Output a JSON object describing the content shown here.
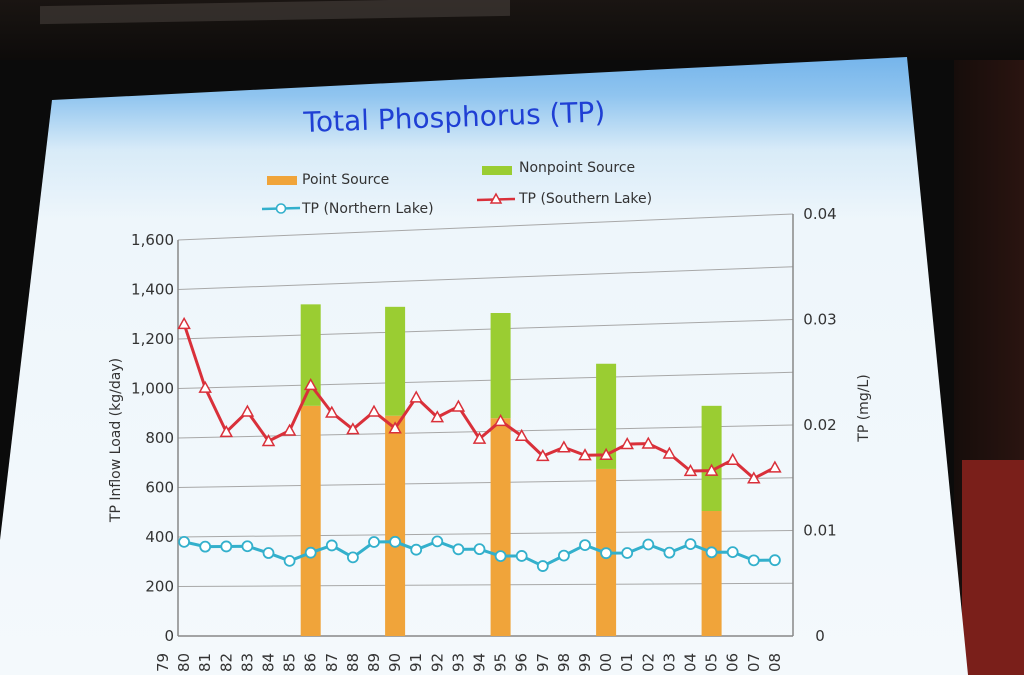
{
  "chart_data": {
    "type": "bar",
    "title": "Total Phosphorus (TP)",
    "xlabel": "",
    "ylabel": "TP Inflow Load (kg/day)",
    "y2label": "TP (mg/L)",
    "ylim": [
      0,
      1600
    ],
    "y2lim": [
      0,
      0.04
    ],
    "y_ticks": [
      "0",
      "200",
      "400",
      "600",
      "800",
      "1,000",
      "1,200",
      "1,400",
      "1,600"
    ],
    "y2_ticks": [
      "0",
      "0.01",
      "0.02",
      "0.03",
      "0.04"
    ],
    "x_ticks": [
      "79",
      "80",
      "81",
      "82",
      "83",
      "84",
      "85",
      "86",
      "87",
      "88",
      "89",
      "90",
      "91",
      "92",
      "93",
      "94",
      "95",
      "96",
      "97",
      "98",
      "99",
      "00",
      "01",
      "02",
      "03",
      "04",
      "05",
      "06",
      "07",
      "08"
    ],
    "bars": {
      "categories": [
        "86",
        "90",
        "95",
        "00",
        "05"
      ],
      "series": [
        {
          "name": "Point Source",
          "color": "#f0a43a",
          "values": [
            930,
            890,
            880,
            675,
            505
          ]
        },
        {
          "name": "Nonpoint Source",
          "color": "#9acd32",
          "values": [
            410,
            440,
            425,
            425,
            425
          ]
        }
      ]
    },
    "lines": [
      {
        "name": "TP (Northern Lake)",
        "color": "#33b0cc",
        "marker": "circle",
        "x": [
          "80",
          "81",
          "82",
          "83",
          "84",
          "85",
          "86",
          "87",
          "88",
          "89",
          "90",
          "91",
          "92",
          "93",
          "94",
          "95",
          "96",
          "97",
          "98",
          "99",
          "00",
          "01",
          "02",
          "03",
          "04",
          "05",
          "06",
          "07",
          "08"
        ],
        "values": [
          0.0095,
          0.009,
          0.009,
          0.009,
          0.0083,
          0.0075,
          0.0083,
          0.009,
          0.0078,
          0.0093,
          0.0093,
          0.0085,
          0.0093,
          0.0085,
          0.0085,
          0.0078,
          0.0078,
          0.0068,
          0.0078,
          0.0088,
          0.008,
          0.008,
          0.0088,
          0.008,
          0.0088,
          0.008,
          0.008,
          0.0072,
          0.0072
        ]
      },
      {
        "name": "TP (Southern Lake)",
        "color": "#d9303a",
        "marker": "triangle",
        "x": [
          "80",
          "81",
          "82",
          "83",
          "84",
          "85",
          "86",
          "87",
          "88",
          "89",
          "90",
          "91",
          "92",
          "93",
          "94",
          "95",
          "96",
          "97",
          "98",
          "99",
          "00",
          "01",
          "02",
          "03",
          "04",
          "05",
          "06",
          "07",
          "08"
        ],
        "values": [
          0.0315,
          0.025,
          0.0205,
          0.0225,
          0.0195,
          0.0205,
          0.025,
          0.0222,
          0.0205,
          0.0222,
          0.0205,
          0.0235,
          0.0215,
          0.0225,
          0.0193,
          0.021,
          0.0195,
          0.0175,
          0.0183,
          0.0175,
          0.0175,
          0.0185,
          0.0185,
          0.0175,
          0.0158,
          0.0158,
          0.0168,
          0.015,
          0.016
        ]
      }
    ],
    "legend": "top",
    "grid": true
  }
}
